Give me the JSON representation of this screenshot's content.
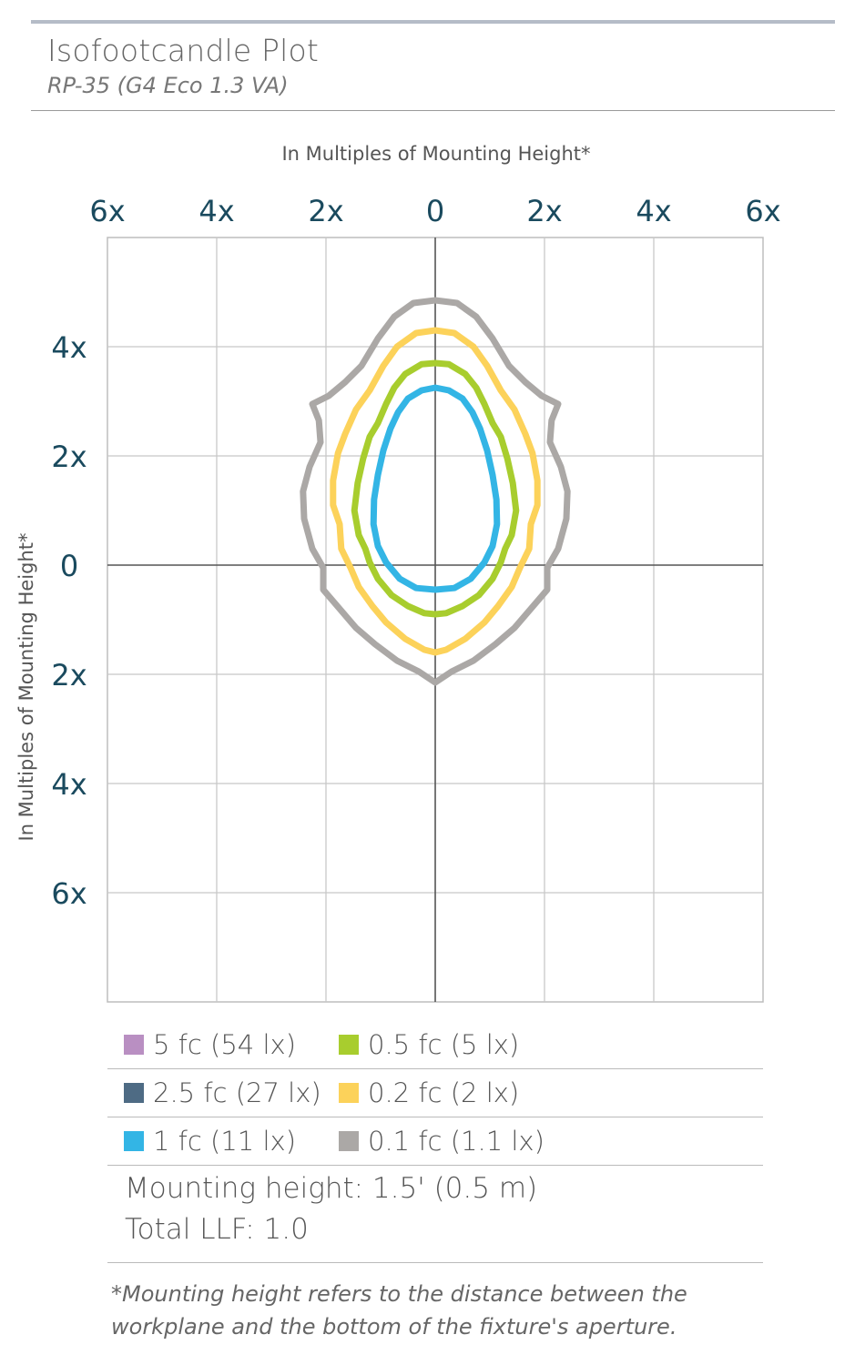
{
  "header": {
    "title": "Isofootcandle Plot",
    "subtitle": "RP-35 (G4 Eco 1.3 VA)"
  },
  "chart_data": {
    "type": "contour",
    "title": "Isofootcandle Plot",
    "subtitle": "RP-35 (G4 Eco 1.3 VA)",
    "xlabel": "In Multiples of Mounting Height*",
    "ylabel": "In Multiples of Mounting Height*",
    "x_ticks": [
      {
        "value": -6,
        "label": "6x"
      },
      {
        "value": -4,
        "label": "4x"
      },
      {
        "value": -2,
        "label": "2x"
      },
      {
        "value": 0,
        "label": "0"
      },
      {
        "value": 2,
        "label": "2x"
      },
      {
        "value": 4,
        "label": "4x"
      },
      {
        "value": 6,
        "label": "6x"
      }
    ],
    "y_ticks": [
      {
        "value": 4,
        "label": "4x"
      },
      {
        "value": 2,
        "label": "2x"
      },
      {
        "value": 0,
        "label": "0"
      },
      {
        "value": -2,
        "label": "2x"
      },
      {
        "value": -4,
        "label": "4x"
      },
      {
        "value": -6,
        "label": "6x"
      }
    ],
    "xlim": [
      -6,
      6
    ],
    "ylim": [
      -8,
      6
    ],
    "grid": true,
    "grid_step": 2,
    "legend_position": "bottom",
    "colors": {
      "grid": "#c8c8c8",
      "axis": "#555555",
      "frame": "#bdbdbd",
      "tick_text": "#1a4a5e"
    },
    "series": [
      {
        "name": "5 fc (54 lx)",
        "color": "#b98fc2",
        "points": []
      },
      {
        "name": "2.5 fc (27 lx)",
        "color": "#4e6b84",
        "points": []
      },
      {
        "name": "1 fc (11 lx)",
        "color": "#33b5e5",
        "points": [
          [
            0.0,
            3.25
          ],
          [
            0.25,
            3.2
          ],
          [
            0.5,
            3.05
          ],
          [
            0.68,
            2.8
          ],
          [
            0.82,
            2.5
          ],
          [
            0.95,
            2.1
          ],
          [
            1.05,
            1.65
          ],
          [
            1.12,
            1.2
          ],
          [
            1.13,
            0.75
          ],
          [
            1.05,
            0.35
          ],
          [
            0.9,
            0.05
          ],
          [
            0.65,
            -0.25
          ],
          [
            0.35,
            -0.42
          ],
          [
            0.0,
            -0.45
          ],
          [
            -0.35,
            -0.42
          ],
          [
            -0.65,
            -0.25
          ],
          [
            -0.9,
            0.05
          ],
          [
            -1.05,
            0.35
          ],
          [
            -1.13,
            0.75
          ],
          [
            -1.12,
            1.2
          ],
          [
            -1.05,
            1.65
          ],
          [
            -0.95,
            2.1
          ],
          [
            -0.82,
            2.5
          ],
          [
            -0.68,
            2.8
          ],
          [
            -0.5,
            3.05
          ],
          [
            -0.25,
            3.2
          ]
        ]
      },
      {
        "name": "0.5 fc (5 lx)",
        "color": "#a8cd2e",
        "points": [
          [
            0.0,
            3.7
          ],
          [
            0.25,
            3.68
          ],
          [
            0.55,
            3.5
          ],
          [
            0.75,
            3.25
          ],
          [
            0.9,
            2.95
          ],
          [
            1.05,
            2.6
          ],
          [
            1.2,
            2.35
          ],
          [
            1.32,
            1.95
          ],
          [
            1.42,
            1.5
          ],
          [
            1.48,
            1.0
          ],
          [
            1.4,
            0.55
          ],
          [
            1.28,
            0.3
          ],
          [
            1.2,
            0.05
          ],
          [
            1.05,
            -0.25
          ],
          [
            0.8,
            -0.55
          ],
          [
            0.5,
            -0.75
          ],
          [
            0.2,
            -0.88
          ],
          [
            0.0,
            -0.9
          ],
          [
            -0.2,
            -0.88
          ],
          [
            -0.5,
            -0.75
          ],
          [
            -0.8,
            -0.55
          ],
          [
            -1.05,
            -0.25
          ],
          [
            -1.2,
            0.05
          ],
          [
            -1.28,
            0.3
          ],
          [
            -1.4,
            0.55
          ],
          [
            -1.48,
            1.0
          ],
          [
            -1.42,
            1.5
          ],
          [
            -1.32,
            1.95
          ],
          [
            -1.2,
            2.35
          ],
          [
            -1.05,
            2.6
          ],
          [
            -0.9,
            2.95
          ],
          [
            -0.75,
            3.25
          ],
          [
            -0.55,
            3.5
          ],
          [
            -0.25,
            3.68
          ]
        ]
      },
      {
        "name": "0.2 fc (2 lx)",
        "color": "#fcd25a",
        "points": [
          [
            0.0,
            4.3
          ],
          [
            0.35,
            4.25
          ],
          [
            0.7,
            4.0
          ],
          [
            0.95,
            3.65
          ],
          [
            1.2,
            3.2
          ],
          [
            1.45,
            2.85
          ],
          [
            1.65,
            2.4
          ],
          [
            1.78,
            2.05
          ],
          [
            1.87,
            1.55
          ],
          [
            1.87,
            1.1
          ],
          [
            1.75,
            0.75
          ],
          [
            1.72,
            0.3
          ],
          [
            1.55,
            -0.05
          ],
          [
            1.4,
            -0.4
          ],
          [
            1.15,
            -0.75
          ],
          [
            0.9,
            -1.05
          ],
          [
            0.55,
            -1.35
          ],
          [
            0.2,
            -1.55
          ],
          [
            0.0,
            -1.6
          ],
          [
            -0.2,
            -1.55
          ],
          [
            -0.55,
            -1.35
          ],
          [
            -0.9,
            -1.05
          ],
          [
            -1.15,
            -0.75
          ],
          [
            -1.4,
            -0.4
          ],
          [
            -1.55,
            -0.05
          ],
          [
            -1.72,
            0.3
          ],
          [
            -1.75,
            0.75
          ],
          [
            -1.87,
            1.1
          ],
          [
            -1.87,
            1.55
          ],
          [
            -1.78,
            2.05
          ],
          [
            -1.65,
            2.4
          ],
          [
            -1.45,
            2.85
          ],
          [
            -1.2,
            3.2
          ],
          [
            -0.95,
            3.65
          ],
          [
            -0.7,
            4.0
          ],
          [
            -0.35,
            4.25
          ]
        ]
      },
      {
        "name": "0.1 fc (1.1 lx)",
        "color": "#aba8a6",
        "points": [
          [
            0.0,
            4.85
          ],
          [
            0.4,
            4.8
          ],
          [
            0.75,
            4.55
          ],
          [
            1.05,
            4.15
          ],
          [
            1.35,
            3.65
          ],
          [
            1.65,
            3.35
          ],
          [
            1.95,
            3.1
          ],
          [
            2.25,
            2.95
          ],
          [
            2.13,
            2.65
          ],
          [
            2.1,
            2.25
          ],
          [
            2.3,
            1.8
          ],
          [
            2.42,
            1.35
          ],
          [
            2.4,
            0.85
          ],
          [
            2.25,
            0.3
          ],
          [
            2.05,
            -0.05
          ],
          [
            2.05,
            -0.45
          ],
          [
            1.75,
            -0.8
          ],
          [
            1.45,
            -1.15
          ],
          [
            1.1,
            -1.45
          ],
          [
            0.7,
            -1.75
          ],
          [
            0.3,
            -1.95
          ],
          [
            0.0,
            -2.15
          ],
          [
            -0.3,
            -1.95
          ],
          [
            -0.7,
            -1.75
          ],
          [
            -1.1,
            -1.45
          ],
          [
            -1.45,
            -1.15
          ],
          [
            -1.75,
            -0.8
          ],
          [
            -2.05,
            -0.45
          ],
          [
            -2.05,
            -0.05
          ],
          [
            -2.25,
            0.3
          ],
          [
            -2.4,
            0.85
          ],
          [
            -2.42,
            1.35
          ],
          [
            -2.3,
            1.8
          ],
          [
            -2.1,
            2.25
          ],
          [
            -2.13,
            2.65
          ],
          [
            -2.25,
            2.95
          ],
          [
            -1.95,
            3.1
          ],
          [
            -1.65,
            3.35
          ],
          [
            -1.35,
            3.65
          ],
          [
            -1.05,
            4.15
          ],
          [
            -0.75,
            4.55
          ],
          [
            -0.4,
            4.8
          ]
        ]
      }
    ]
  },
  "legend": [
    [
      {
        "label": "5 fc (54 lx)",
        "color": "#b98fc2"
      },
      {
        "label": "0.5 fc (5 lx)",
        "color": "#a8cd2e"
      }
    ],
    [
      {
        "label": "2.5 fc (27 lx)",
        "color": "#4e6b84"
      },
      {
        "label": "0.2 fc (2 lx)",
        "color": "#fcd25a"
      }
    ],
    [
      {
        "label": "1 fc (11 lx)",
        "color": "#33b5e5"
      },
      {
        "label": "0.1 fc (1.1 lx)",
        "color": "#aba8a6"
      }
    ]
  ],
  "notes": {
    "mounting_height": "Mounting height: 1.5' (0.5 m)",
    "total_llf": "Total LLF: 1.0"
  },
  "footnote": {
    "line1": "*Mounting height refers to the distance between the",
    "line2": "workplane and the bottom of the fixture's aperture."
  }
}
